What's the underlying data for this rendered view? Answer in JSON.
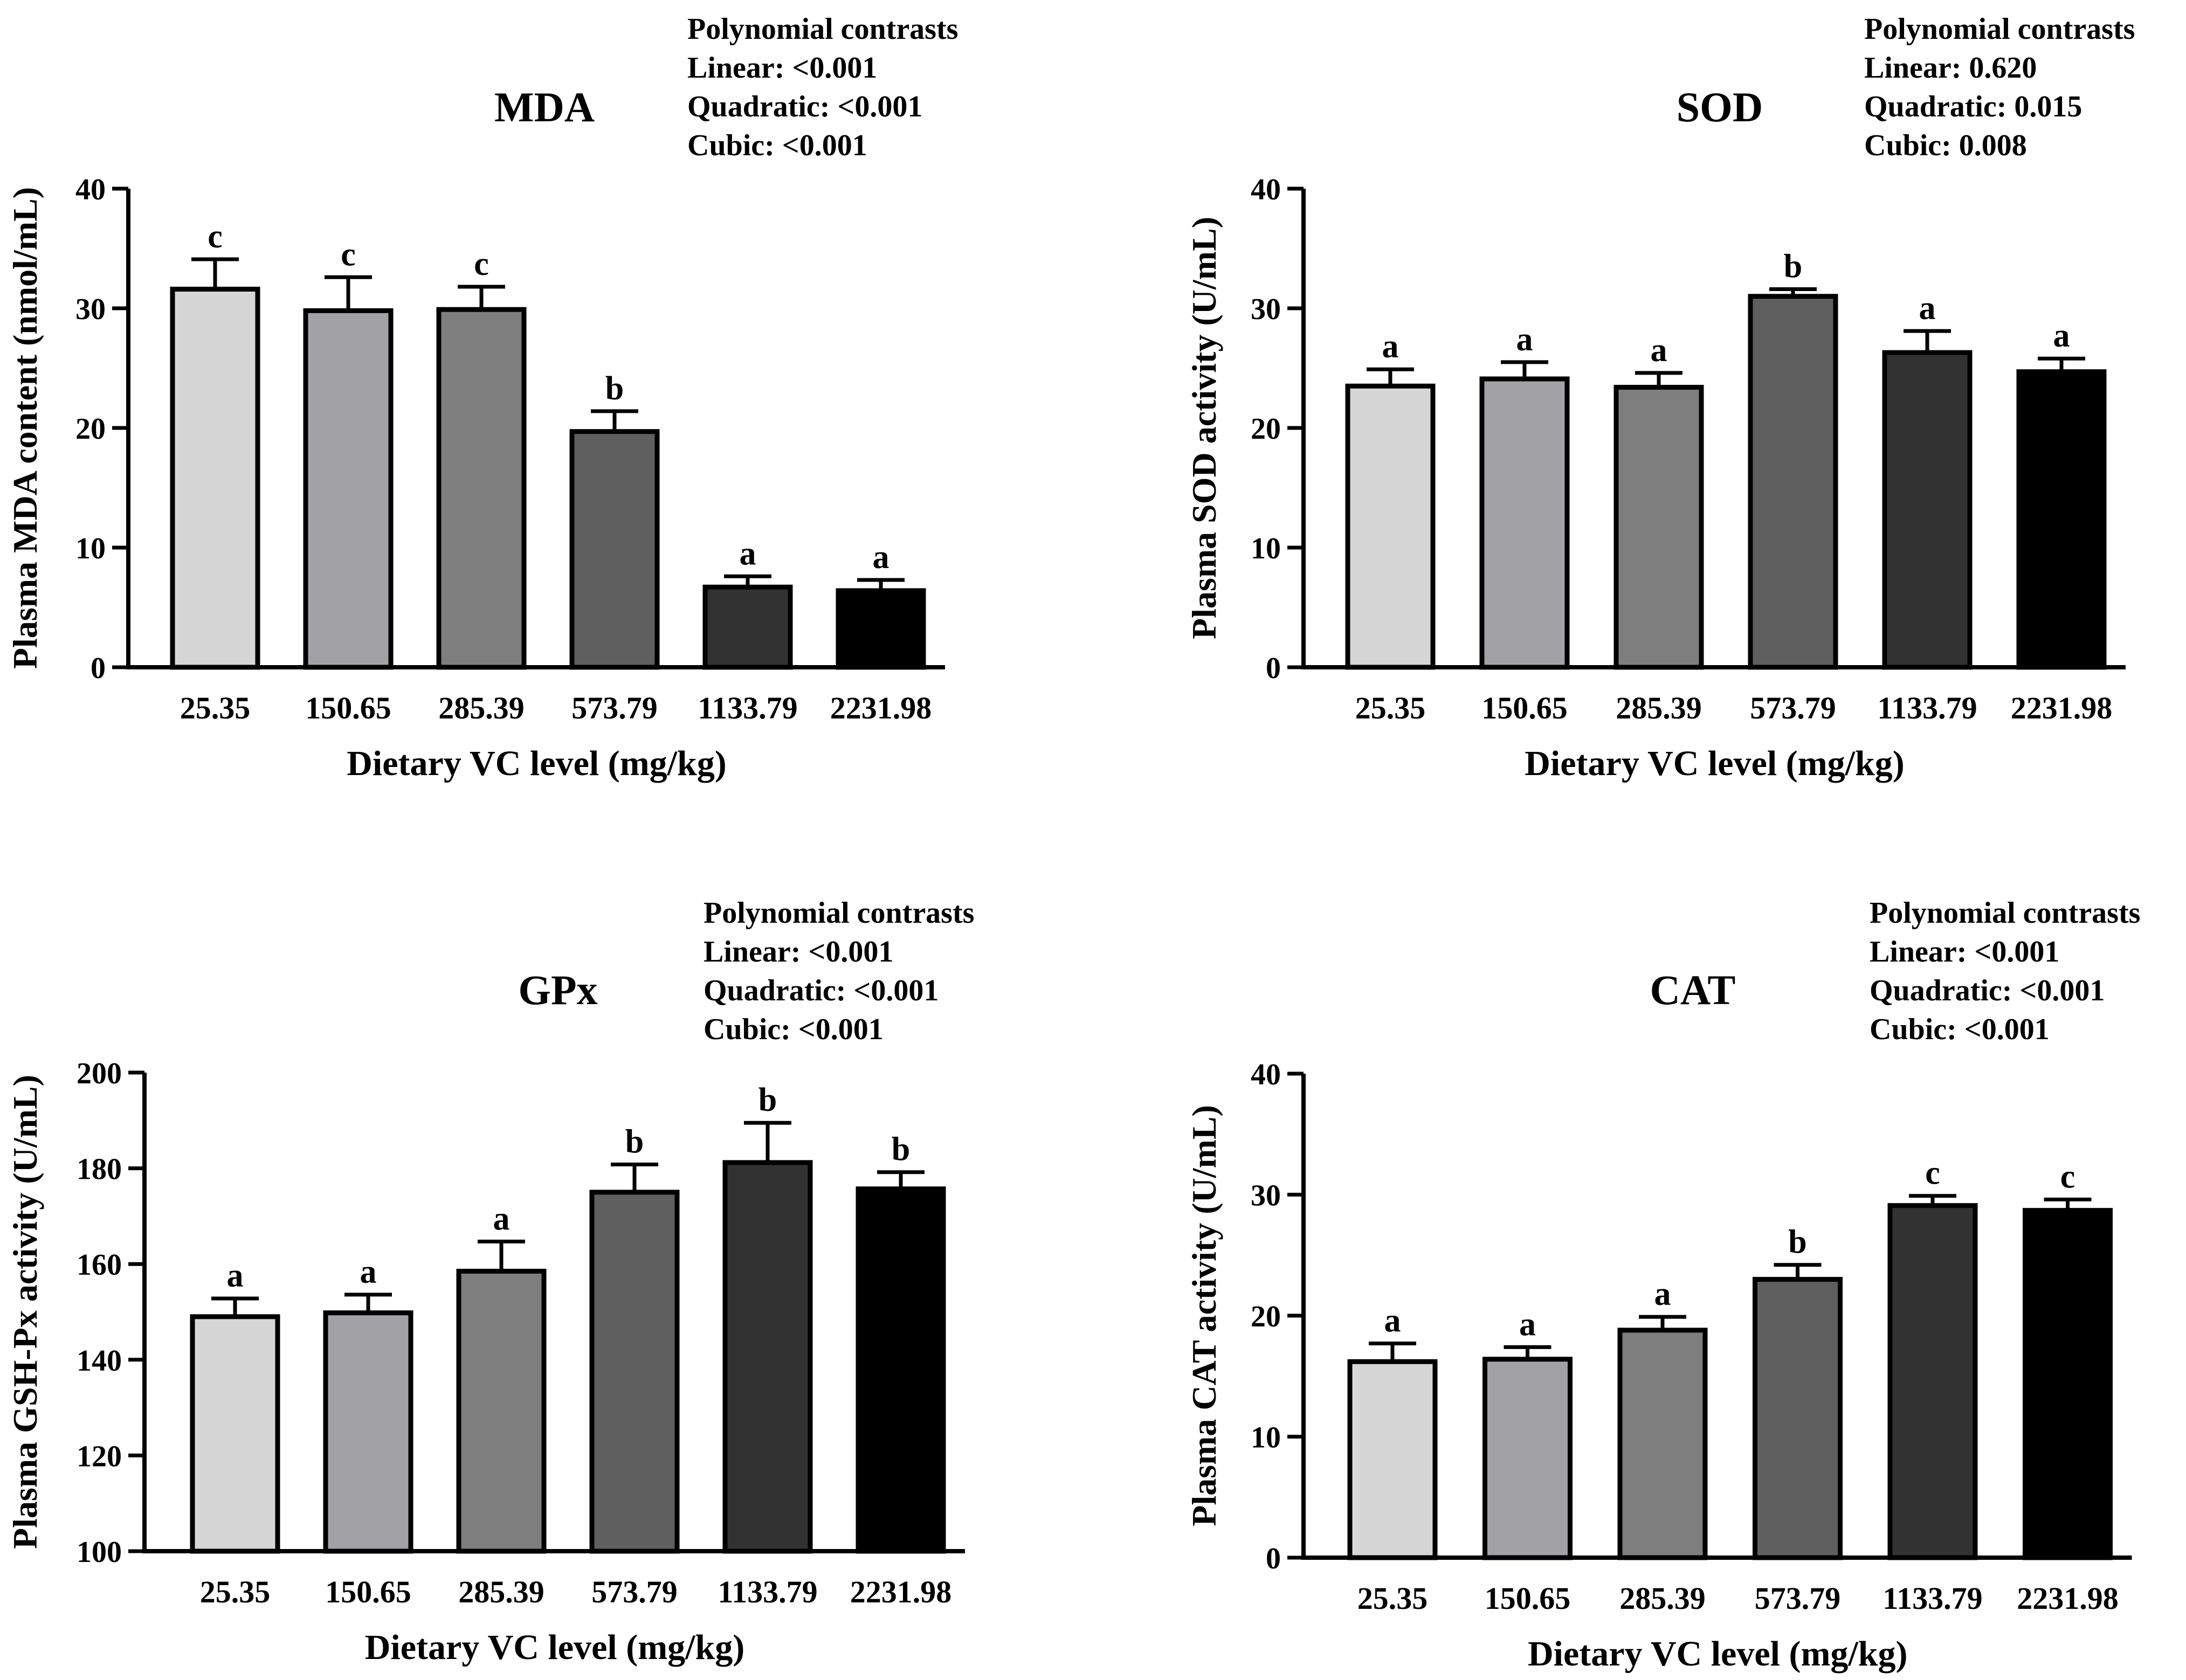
{
  "figure": {
    "colors": {
      "bars": [
        "#d6d6d6",
        "#a2a2a6",
        "#7e7e7e",
        "#5f5f5f",
        "#323232",
        "#000000"
      ],
      "axis": "#000000",
      "error_bar": "#000000"
    }
  },
  "chart_data": [
    {
      "type": "bar",
      "title": "MDA",
      "xlabel": "Dietary VC level (mg/kg)",
      "ylabel": "Plasma MDA content (nmol/mL)",
      "categories": [
        "25.35",
        "150.65",
        "285.39",
        "573.79",
        "1133.79",
        "2231.98"
      ],
      "values": [
        31.6,
        29.8,
        29.9,
        19.7,
        6.7,
        6.4
      ],
      "errors": [
        2.5,
        2.8,
        1.9,
        1.7,
        0.9,
        0.9
      ],
      "letters": [
        "c",
        "c",
        "c",
        "b",
        "a",
        "a"
      ],
      "ylim": [
        0,
        40
      ],
      "yticks": [
        "0",
        "10",
        "20",
        "30",
        "40"
      ],
      "contrasts": {
        "heading": "Polynomial contrasts",
        "lines": [
          "Linear: <0.001",
          "Quadratic: <0.001",
          "Cubic: <0.001"
        ]
      },
      "grid": false,
      "legend": "none"
    },
    {
      "type": "bar",
      "title": "SOD",
      "xlabel": "Dietary VC level (mg/kg)",
      "ylabel": "Plasma SOD activity (U/mL)",
      "categories": [
        "25.35",
        "150.65",
        "285.39",
        "573.79",
        "1133.79",
        "2231.98"
      ],
      "values": [
        23.5,
        24.1,
        23.4,
        31.0,
        26.3,
        24.7
      ],
      "errors": [
        1.4,
        1.4,
        1.2,
        0.6,
        1.8,
        1.1
      ],
      "letters": [
        "a",
        "a",
        "a",
        "b",
        "a",
        "a"
      ],
      "ylim": [
        0,
        40
      ],
      "yticks": [
        "0",
        "10",
        "20",
        "30",
        "40"
      ],
      "contrasts": {
        "heading": "Polynomial contrasts",
        "lines": [
          "Linear: 0.620",
          "Quadratic: 0.015",
          "Cubic: 0.008"
        ]
      },
      "grid": false,
      "legend": "none"
    },
    {
      "type": "bar",
      "title": "GPx",
      "xlabel": "Dietary VC level (mg/kg)",
      "ylabel": "Plasma GSH-Px activity (U/mL)",
      "categories": [
        "25.35",
        "150.65",
        "285.39",
        "573.79",
        "1133.79",
        "2231.98"
      ],
      "values": [
        149,
        149.8,
        158.5,
        175,
        181.2,
        175.7
      ],
      "errors": [
        3.8,
        3.8,
        6.2,
        5.8,
        8.3,
        3.5
      ],
      "letters": [
        "a",
        "a",
        "a",
        "b",
        "b",
        "b"
      ],
      "ylim": [
        100,
        200
      ],
      "yticks": [
        "100",
        "120",
        "140",
        "160",
        "180",
        "200"
      ],
      "contrasts": {
        "heading": "Polynomial contrasts",
        "lines": [
          "Linear: <0.001",
          "Quadratic: <0.001",
          "Cubic: <0.001"
        ]
      },
      "grid": false,
      "legend": "none"
    },
    {
      "type": "bar",
      "title": "CAT",
      "xlabel": "Dietary VC level (mg/kg)",
      "ylabel": "Plasma CAT activity (U/mL)",
      "categories": [
        "25.35",
        "150.65",
        "285.39",
        "573.79",
        "1133.79",
        "2231.98"
      ],
      "values": [
        16.2,
        16.4,
        18.8,
        23.0,
        29.1,
        28.7
      ],
      "errors": [
        1.5,
        1.0,
        1.1,
        1.2,
        0.8,
        0.9
      ],
      "letters": [
        "a",
        "a",
        "a",
        "b",
        "c",
        "c"
      ],
      "ylim": [
        0,
        40
      ],
      "yticks": [
        "0",
        "10",
        "20",
        "30",
        "40"
      ],
      "contrasts": {
        "heading": "Polynomial contrasts",
        "lines": [
          "Linear: <0.001",
          "Quadratic: <0.001",
          "Cubic: <0.001"
        ]
      },
      "grid": false,
      "legend": "none"
    }
  ]
}
